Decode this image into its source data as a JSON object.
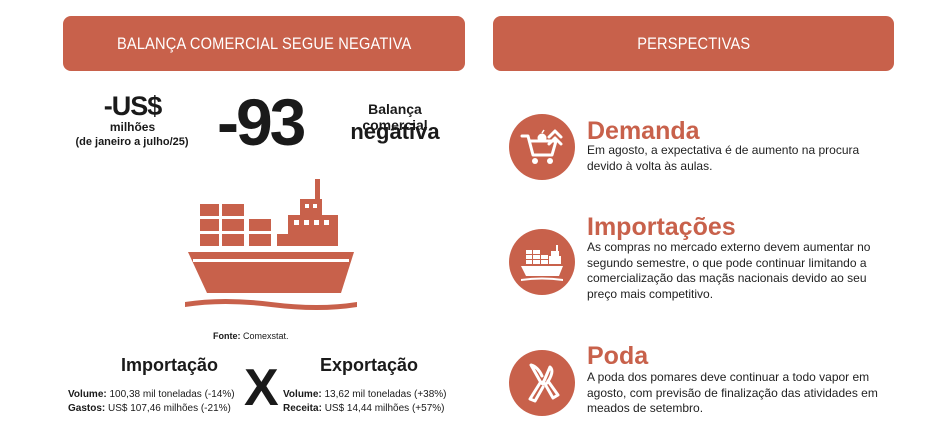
{
  "left_banner": {
    "title": "BALANÇA COMERCIAL SEGUE NEGATIVA"
  },
  "right_banner": {
    "title": "PERSPECTIVAS"
  },
  "stat": {
    "unit": "-US$",
    "millions": "milhões",
    "period": "(de janeiro a julho/25)",
    "value": "-93",
    "desc_line1": "Balança comercial",
    "desc_line2": "negativa"
  },
  "source": {
    "label": "Fonte:",
    "value": "Comexstat."
  },
  "trade": {
    "import_title": "Importação",
    "export_title": "Exportação",
    "x_sign": "X",
    "import_volume_label": "Volume:",
    "import_volume_value": "100,38 mil toneladas (-14%)",
    "import_spend_label": "Gastos:",
    "import_spend_value": "US$ 107,46 milhões (-21%)",
    "export_volume_label": "Volume:",
    "export_volume_value": "13,62 mil toneladas (+38%)",
    "export_revenue_label": "Receita:",
    "export_revenue_value": "US$ 14,44 milhões (+57%)"
  },
  "perspectives": [
    {
      "icon": "shopping-cart-icon",
      "title": "Demanda",
      "text": "Em agosto, a expectativa é de aumento na procura devido à volta às aulas."
    },
    {
      "icon": "cargo-ship-icon",
      "title": "Importações",
      "text": "As compras no mercado externo devem aumentar no segundo semestre, o que pode continuar limitando a comercialização das maçãs nacionais devido ao seu preço mais competitivo."
    },
    {
      "icon": "pruning-shears-icon",
      "title": "Poda",
      "text": "A poda dos pomares deve continuar a todo vapor em agosto, com previsão de finalização das atividades em meados de setembro."
    }
  ],
  "colors": {
    "accent": "#c8614b",
    "text": "#1a1a1a",
    "background": "#ffffff"
  }
}
